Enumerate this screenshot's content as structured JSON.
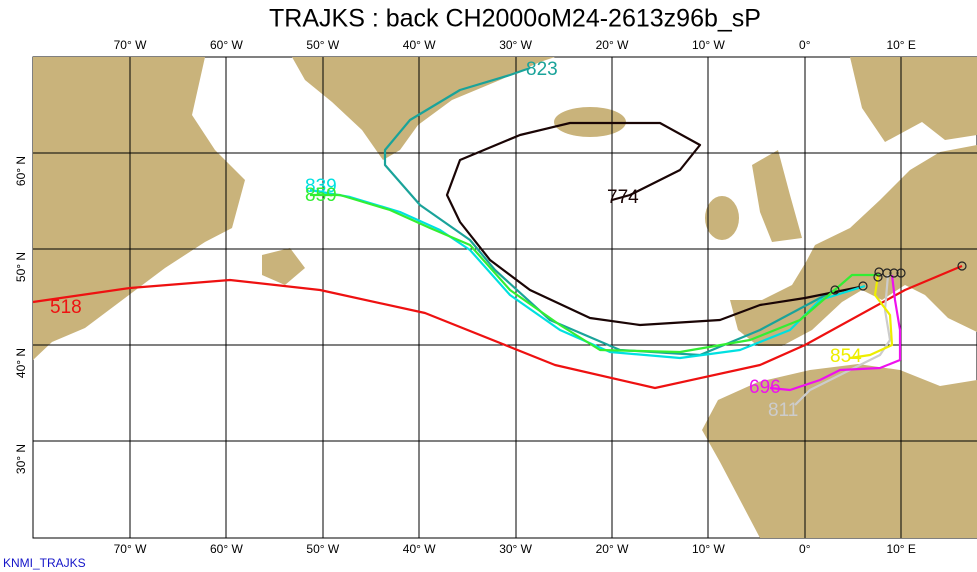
{
  "title": "TRAJKS : back CH2000oM24-2613z96b_sP",
  "lon_labels": [
    "70° W",
    "60° W",
    "50° W",
    "40° W",
    "30° W",
    "20° W",
    "10° W",
    "0°",
    "10° E"
  ],
  "lat_labels": [
    "60° N",
    "50° N",
    "40° N",
    "30° N"
  ],
  "trajectory_labels": [
    "518",
    "823",
    "774",
    "839",
    "859",
    "854",
    "696",
    "811"
  ],
  "footer": "KNMI_TRAJKS"
}
